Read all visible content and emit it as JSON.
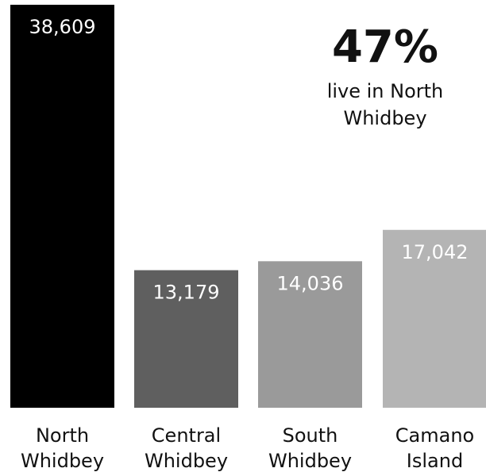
{
  "chart_data": {
    "type": "bar",
    "categories": [
      "North Whidbey",
      "Central Whidbey",
      "South Whidbey",
      "Camano Island"
    ],
    "category_lines": [
      [
        "North",
        "Whidbey"
      ],
      [
        "Central",
        "Whidbey"
      ],
      [
        "South",
        "Whidbey"
      ],
      [
        "Camano",
        "Island"
      ]
    ],
    "values": [
      38609,
      13179,
      14036,
      17042
    ],
    "value_labels": [
      "38,609",
      "13,179",
      "14,036",
      "17,042"
    ],
    "bar_colors": [
      "#000000",
      "#5f5f5f",
      "#9a9a9a",
      "#b4b4b4"
    ],
    "ylim": [
      0,
      38609
    ],
    "grid": false,
    "title": "",
    "xlabel": "",
    "ylabel": ""
  },
  "callout": {
    "value": "47%",
    "text": "live in North Whidbey"
  }
}
